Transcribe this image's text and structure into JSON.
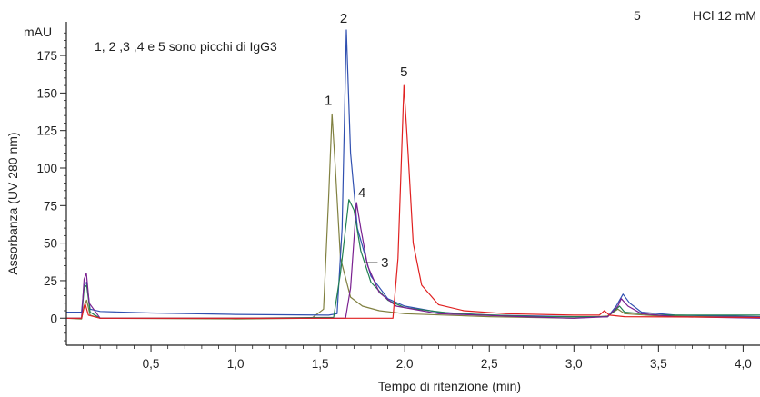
{
  "chart_data": {
    "type": "line",
    "title": "",
    "xlabel": "Tempo di ritenzione (min)",
    "ylabel": "Assorbanza (UV 280 nm)",
    "y_unit": "mAU",
    "xlim": [
      0.0,
      4.1
    ],
    "ylim": [
      -18,
      195
    ],
    "x_ticks": [
      0.5,
      1.0,
      1.5,
      2.0,
      2.5,
      3.0,
      3.5,
      4.0
    ],
    "x_tick_labels": [
      "0,5",
      "1,0",
      "1,5",
      "2,0",
      "2,5",
      "3,0",
      "3,5",
      "4,0"
    ],
    "y_ticks": [
      0,
      25,
      50,
      75,
      100,
      125,
      150,
      175
    ],
    "y_tick_labels": [
      "0",
      "25",
      "50",
      "75",
      "100",
      "125",
      "150",
      "175"
    ],
    "grid": false,
    "annotation": "1, 2 ,3 ,4 e 5 sono picchi di IgG3",
    "legend_fragment": {
      "number": "5",
      "text": "HCl 12 mM"
    },
    "series": [
      {
        "color": "#808040",
        "peaks": [
          {
            "label": "1",
            "x": 1.57,
            "y": 136
          }
        ],
        "points": [
          [
            0,
            0
          ],
          [
            0.09,
            -0.5
          ],
          [
            0.105,
            8
          ],
          [
            0.12,
            12
          ],
          [
            0.14,
            2
          ],
          [
            0.2,
            0
          ],
          [
            1.0,
            -0.5
          ],
          [
            1.45,
            0
          ],
          [
            1.52,
            6
          ],
          [
            1.55,
            80
          ],
          [
            1.57,
            136
          ],
          [
            1.59,
            100
          ],
          [
            1.62,
            40
          ],
          [
            1.68,
            14
          ],
          [
            1.75,
            8
          ],
          [
            1.85,
            5
          ],
          [
            2.0,
            3
          ],
          [
            2.5,
            1
          ],
          [
            3.0,
            0
          ],
          [
            3.2,
            1.5
          ],
          [
            3.26,
            6
          ],
          [
            3.3,
            3
          ],
          [
            3.5,
            1.5
          ],
          [
            4.1,
            0.5
          ]
        ]
      },
      {
        "color": "#3050b0",
        "peaks": [
          {
            "label": "2",
            "x": 1.655,
            "y": 192
          }
        ],
        "points": [
          [
            0,
            4
          ],
          [
            0.09,
            4
          ],
          [
            0.105,
            22
          ],
          [
            0.12,
            24
          ],
          [
            0.14,
            6
          ],
          [
            0.2,
            4.5
          ],
          [
            0.5,
            3.5
          ],
          [
            1.0,
            2.5
          ],
          [
            1.55,
            2
          ],
          [
            1.6,
            3
          ],
          [
            1.63,
            60
          ],
          [
            1.655,
            192
          ],
          [
            1.68,
            110
          ],
          [
            1.72,
            60
          ],
          [
            1.8,
            28
          ],
          [
            1.9,
            13
          ],
          [
            2.0,
            8
          ],
          [
            2.2,
            4
          ],
          [
            2.5,
            2
          ],
          [
            3.0,
            1
          ],
          [
            3.2,
            1
          ],
          [
            3.25,
            8
          ],
          [
            3.29,
            16
          ],
          [
            3.33,
            10
          ],
          [
            3.4,
            4
          ],
          [
            3.6,
            2
          ],
          [
            4.1,
            1
          ]
        ]
      },
      {
        "color": "#208050",
        "peaks": [
          {
            "label": "3",
            "x": 1.67,
            "y": 79
          }
        ],
        "points": [
          [
            0,
            0
          ],
          [
            0.09,
            0
          ],
          [
            0.105,
            20
          ],
          [
            0.12,
            22
          ],
          [
            0.14,
            4
          ],
          [
            0.2,
            0
          ],
          [
            1.0,
            0
          ],
          [
            1.58,
            0.5
          ],
          [
            1.62,
            30
          ],
          [
            1.67,
            79
          ],
          [
            1.7,
            72
          ],
          [
            1.74,
            45
          ],
          [
            1.8,
            24
          ],
          [
            1.9,
            12
          ],
          [
            2.0,
            7
          ],
          [
            2.3,
            3
          ],
          [
            2.8,
            1
          ],
          [
            3.0,
            1
          ],
          [
            3.2,
            1
          ],
          [
            3.27,
            8
          ],
          [
            3.3,
            4
          ],
          [
            3.5,
            2
          ],
          [
            4.1,
            2
          ]
        ]
      },
      {
        "color": "#7a2090",
        "peaks": [
          {
            "label": "4",
            "x": 1.715,
            "y": 77
          }
        ],
        "points": [
          [
            0,
            0
          ],
          [
            0.09,
            0
          ],
          [
            0.105,
            26
          ],
          [
            0.118,
            30
          ],
          [
            0.135,
            10
          ],
          [
            0.2,
            0
          ],
          [
            1.0,
            0
          ],
          [
            1.65,
            0
          ],
          [
            1.68,
            20
          ],
          [
            1.715,
            77
          ],
          [
            1.74,
            60
          ],
          [
            1.78,
            35
          ],
          [
            1.85,
            17
          ],
          [
            1.95,
            8
          ],
          [
            2.2,
            3
          ],
          [
            2.7,
            1
          ],
          [
            3.0,
            0
          ],
          [
            3.2,
            1
          ],
          [
            3.26,
            8
          ],
          [
            3.28,
            13
          ],
          [
            3.32,
            8
          ],
          [
            3.4,
            3
          ],
          [
            3.6,
            1
          ],
          [
            4.1,
            0
          ]
        ]
      },
      {
        "color": "#e02020",
        "peaks": [
          {
            "label": "5",
            "x": 1.995,
            "y": 155
          }
        ],
        "points": [
          [
            0,
            0
          ],
          [
            0.09,
            0
          ],
          [
            0.1,
            5
          ],
          [
            0.11,
            10
          ],
          [
            0.13,
            2
          ],
          [
            0.2,
            0
          ],
          [
            1.0,
            0
          ],
          [
            1.93,
            0
          ],
          [
            1.96,
            40
          ],
          [
            1.995,
            155
          ],
          [
            2.02,
            110
          ],
          [
            2.05,
            50
          ],
          [
            2.1,
            22
          ],
          [
            2.2,
            9
          ],
          [
            2.35,
            5
          ],
          [
            2.6,
            3
          ],
          [
            3.0,
            2
          ],
          [
            3.15,
            2
          ],
          [
            3.18,
            5
          ],
          [
            3.21,
            2
          ],
          [
            3.3,
            1
          ],
          [
            4.1,
            0.5
          ]
        ]
      }
    ]
  }
}
